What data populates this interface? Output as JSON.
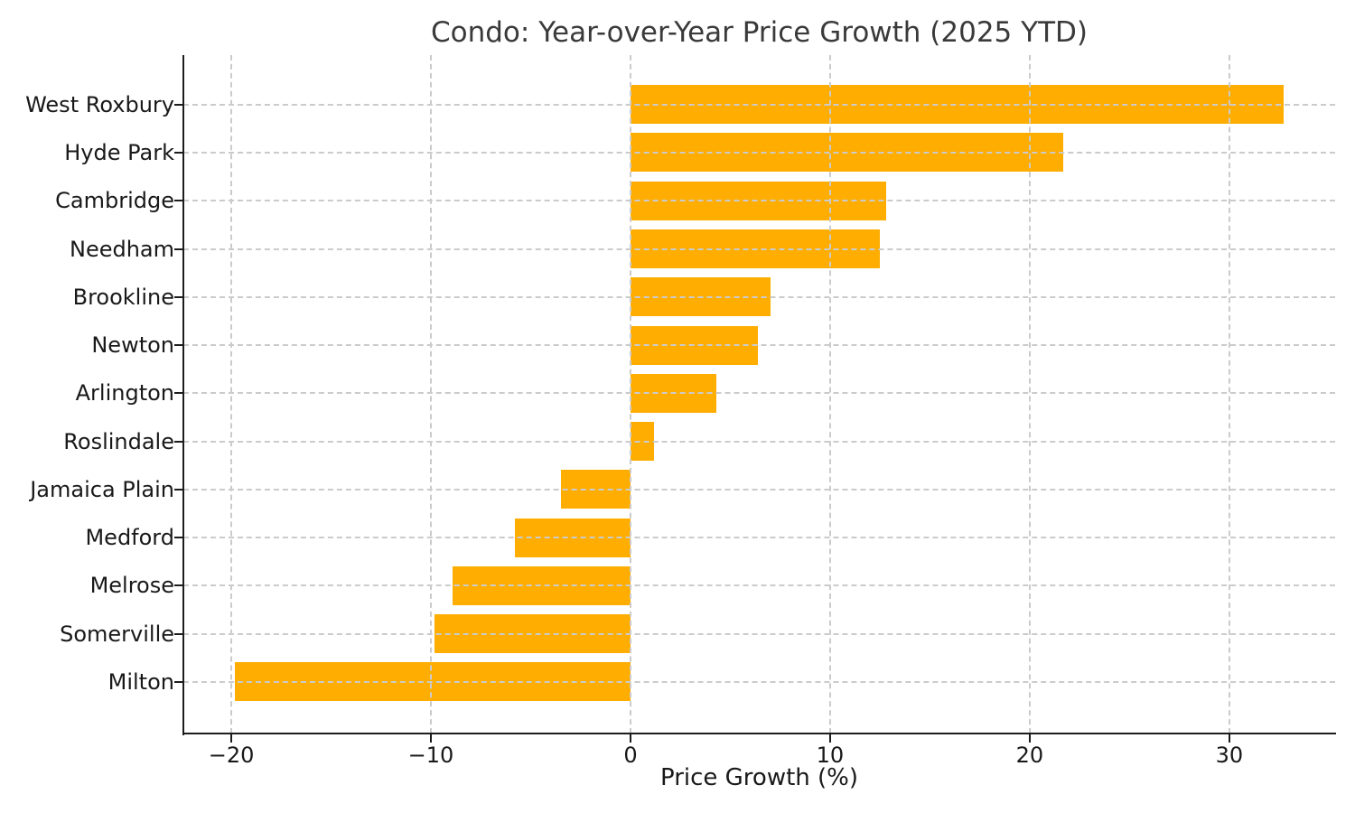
{
  "chart_data": {
    "type": "bar",
    "orientation": "horizontal",
    "title": "Condo: Year-over-Year Price Growth (2025 YTD)",
    "xlabel": "Price Growth (%)",
    "ylabel": "",
    "categories": [
      "West Roxbury",
      "Hyde Park",
      "Cambridge",
      "Needham",
      "Brookline",
      "Newton",
      "Arlington",
      "Roslindale",
      "Jamaica Plain",
      "Medford",
      "Melrose",
      "Somerville",
      "Milton"
    ],
    "values": [
      32.7,
      21.7,
      12.8,
      12.5,
      7.0,
      6.4,
      4.3,
      1.2,
      -3.5,
      -5.8,
      -8.9,
      -9.8,
      -19.8
    ],
    "bar_color": "#ffad00",
    "xlim": [
      -22.4,
      35.3
    ],
    "xticks": [
      -20,
      -10,
      0,
      10,
      20,
      30
    ],
    "xtick_labels": [
      "−20",
      "−10",
      "0",
      "10",
      "20",
      "30"
    ],
    "grid": "dashed",
    "grid_color": "#cbcbcb",
    "legend": "none",
    "background_color": "#ffffff"
  }
}
